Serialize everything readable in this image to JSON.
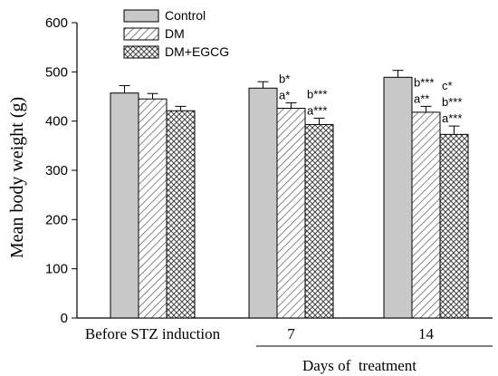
{
  "chart_data": {
    "type": "bar",
    "ylabel": "Mean body weight (g)",
    "xlabel": "Days of  treatment",
    "ylim": [
      0,
      600
    ],
    "yticks": [
      0,
      100,
      200,
      300,
      400,
      500,
      600
    ],
    "categories": [
      "Before STZ induction",
      "7",
      "14"
    ],
    "legend_position": "top-left",
    "series": [
      {
        "name": "Control",
        "pattern": "solid",
        "color": "#c8c8c8",
        "values": [
          457,
          467,
          489
        ],
        "errors": [
          15,
          13,
          14
        ],
        "annotations": [
          [],
          [],
          []
        ]
      },
      {
        "name": "DM",
        "pattern": "diagonal",
        "color": "#ffffff",
        "values": [
          445,
          426,
          418
        ],
        "errors": [
          11,
          11,
          12
        ],
        "annotations": [
          [],
          [
            "b*",
            "a*"
          ],
          [
            "b***",
            "a**"
          ]
        ]
      },
      {
        "name": "DM+EGCG",
        "pattern": "crosshatch",
        "color": "#ffffff",
        "values": [
          421,
          393,
          373
        ],
        "errors": [
          9,
          13,
          17
        ],
        "annotations": [
          [],
          [
            "b***",
            "a***"
          ],
          [
            "c*",
            "b***",
            "a***"
          ]
        ]
      }
    ]
  }
}
